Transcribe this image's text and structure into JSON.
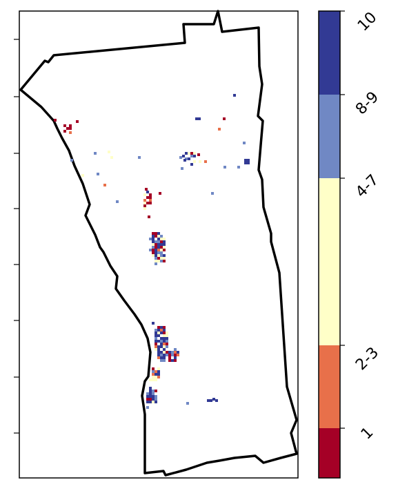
{
  "map": {
    "boundary_color": "#000000",
    "patch_colors": {
      "1": "#a50026",
      "2-3": "#e8704a",
      "4-7": "#ffffc8",
      "8-9": "#7088c4",
      "10": "#323a94"
    }
  },
  "colorbar": {
    "segments": [
      {
        "label": "1",
        "color": "#a50026"
      },
      {
        "label": "2-3",
        "color": "#e8704a"
      },
      {
        "label": "4-7",
        "color": "#ffffc8"
      },
      {
        "label": "8-9",
        "color": "#7088c4"
      },
      {
        "label": "10",
        "color": "#323a94"
      }
    ]
  }
}
